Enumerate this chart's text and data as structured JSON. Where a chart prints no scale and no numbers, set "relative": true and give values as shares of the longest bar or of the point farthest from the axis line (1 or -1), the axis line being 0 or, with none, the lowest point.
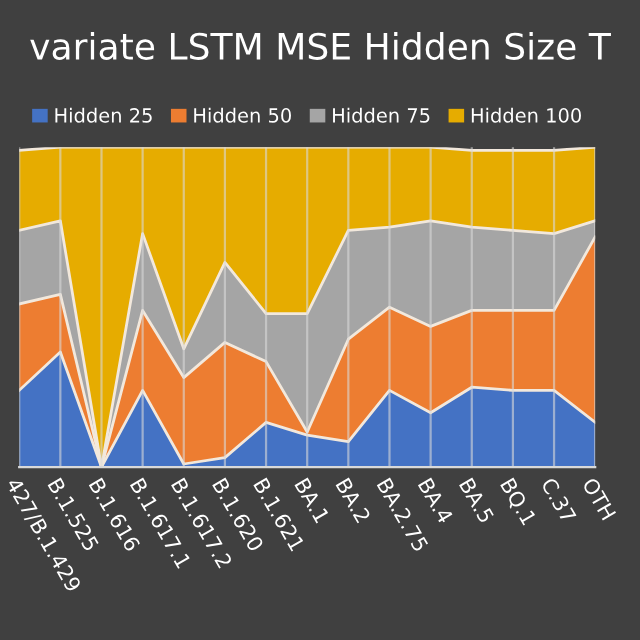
{
  "chart_data": {
    "type": "area",
    "title": "variate LSTM MSE Hidden Size T",
    "stacked": true,
    "relative": true,
    "grid": "x",
    "legend": "top",
    "categories": [
      "427/B.1.429",
      "B.1.525",
      "B.1.616",
      "B.1.617.1",
      "B.1.617.2",
      "B.1.620",
      "B.1.621",
      "BA.1",
      "BA.2",
      "BA.2.75",
      "BA.4",
      "BA.5",
      "BQ.1",
      "C.37",
      "OTH"
    ],
    "series": [
      {
        "name": "Hidden 25",
        "color": "#4472c4",
        "values": [
          0.24,
          0.36,
          0,
          0.24,
          0.01,
          0.03,
          0.14,
          0.1,
          0.08,
          0.24,
          0.17,
          0.25,
          0.24,
          0.24,
          0.14
        ]
      },
      {
        "name": "Hidden 50",
        "color": "#ed7d31",
        "values": [
          0.27,
          0.18,
          0,
          0.25,
          0.27,
          0.36,
          0.19,
          0.01,
          0.32,
          0.26,
          0.27,
          0.24,
          0.25,
          0.25,
          0.58
        ]
      },
      {
        "name": "Hidden 75",
        "color": "#a5a5a5",
        "values": [
          0.23,
          0.23,
          0,
          0.24,
          0.09,
          0.25,
          0.15,
          0.37,
          0.34,
          0.25,
          0.33,
          0.26,
          0.25,
          0.24,
          0.05
        ]
      },
      {
        "name": "Hidden 100",
        "color": "#e6ac00",
        "values": [
          0.25,
          0.23,
          1,
          0.27,
          0.63,
          0.36,
          0.52,
          0.52,
          0.26,
          0.25,
          0.23,
          0.24,
          0.25,
          0.26,
          0.23
        ]
      }
    ]
  }
}
